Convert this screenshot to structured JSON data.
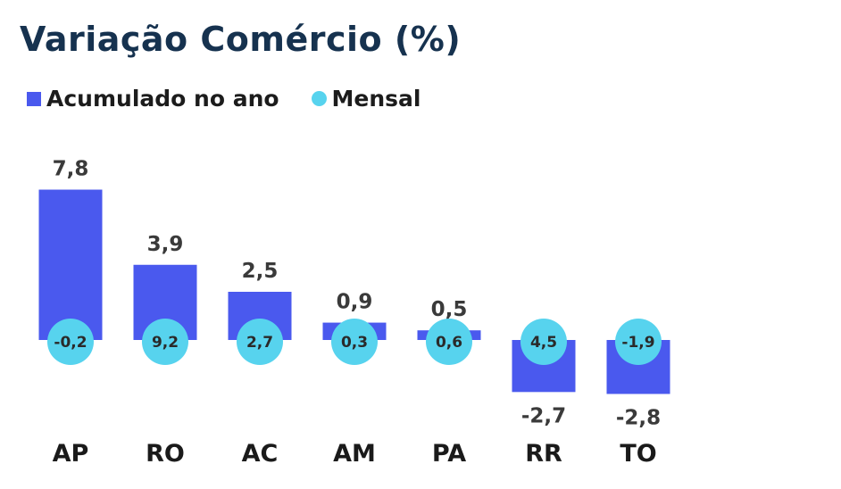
{
  "chart_data": {
    "type": "bar",
    "title": "Variação Comércio (%)",
    "categories": [
      "AP",
      "RO",
      "AC",
      "AM",
      "PA",
      "RR",
      "TO"
    ],
    "series": [
      {
        "name": "Acumulado no ano",
        "marker": "bar",
        "color": "#4a59ee",
        "values": [
          7.8,
          3.9,
          2.5,
          0.9,
          0.5,
          -2.7,
          -2.8
        ],
        "labels": [
          "7,8",
          "3,9",
          "2,5",
          "0,9",
          "0,5",
          "-2,7",
          "-2,8"
        ]
      },
      {
        "name": "Mensal",
        "marker": "circle",
        "color": "#57d3ee",
        "values": [
          -0.2,
          9.2,
          2.7,
          0.3,
          0.6,
          4.5,
          -1.9
        ],
        "labels": [
          "-0,2",
          "9,2",
          "2,7",
          "0,3",
          "0,6",
          "4,5",
          "-1,9"
        ]
      }
    ],
    "legend_position": "top-left",
    "grid": false
  }
}
